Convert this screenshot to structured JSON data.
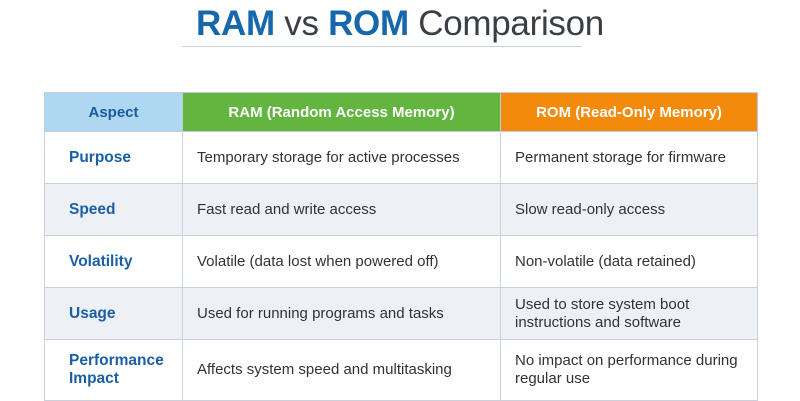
{
  "title": {
    "part1": "RAM",
    "part2": " vs ",
    "part3": "ROM",
    "part4": " Comparison"
  },
  "colors": {
    "title_accent": "#1767ad",
    "header_aspect_bg": "#aed8f2",
    "header_ram_bg": "#62b640",
    "header_rom_bg": "#f48a0c",
    "aspect_text": "#1a5fa6",
    "alt_row_bg": "#edf1f5"
  },
  "table": {
    "headers": [
      "Aspect",
      "RAM (Random Access Memory)",
      "ROM (Read-Only Memory)"
    ],
    "rows": [
      {
        "aspect": "Purpose",
        "ram": "Temporary storage for active processes",
        "rom": "Permanent storage for firmware"
      },
      {
        "aspect": "Speed",
        "ram": "Fast read and write access",
        "rom": "Slow read-only access"
      },
      {
        "aspect": "Volatility",
        "ram": "Volatile (data lost when powered off)",
        "rom": "Non-volatile (data retained)"
      },
      {
        "aspect": "Usage",
        "ram": "Used for running programs and tasks",
        "rom": "Used to store system boot instructions and software"
      },
      {
        "aspect": "Performance Impact",
        "ram": "Affects system speed and multitasking",
        "rom": "No impact on performance during regular use"
      }
    ]
  }
}
